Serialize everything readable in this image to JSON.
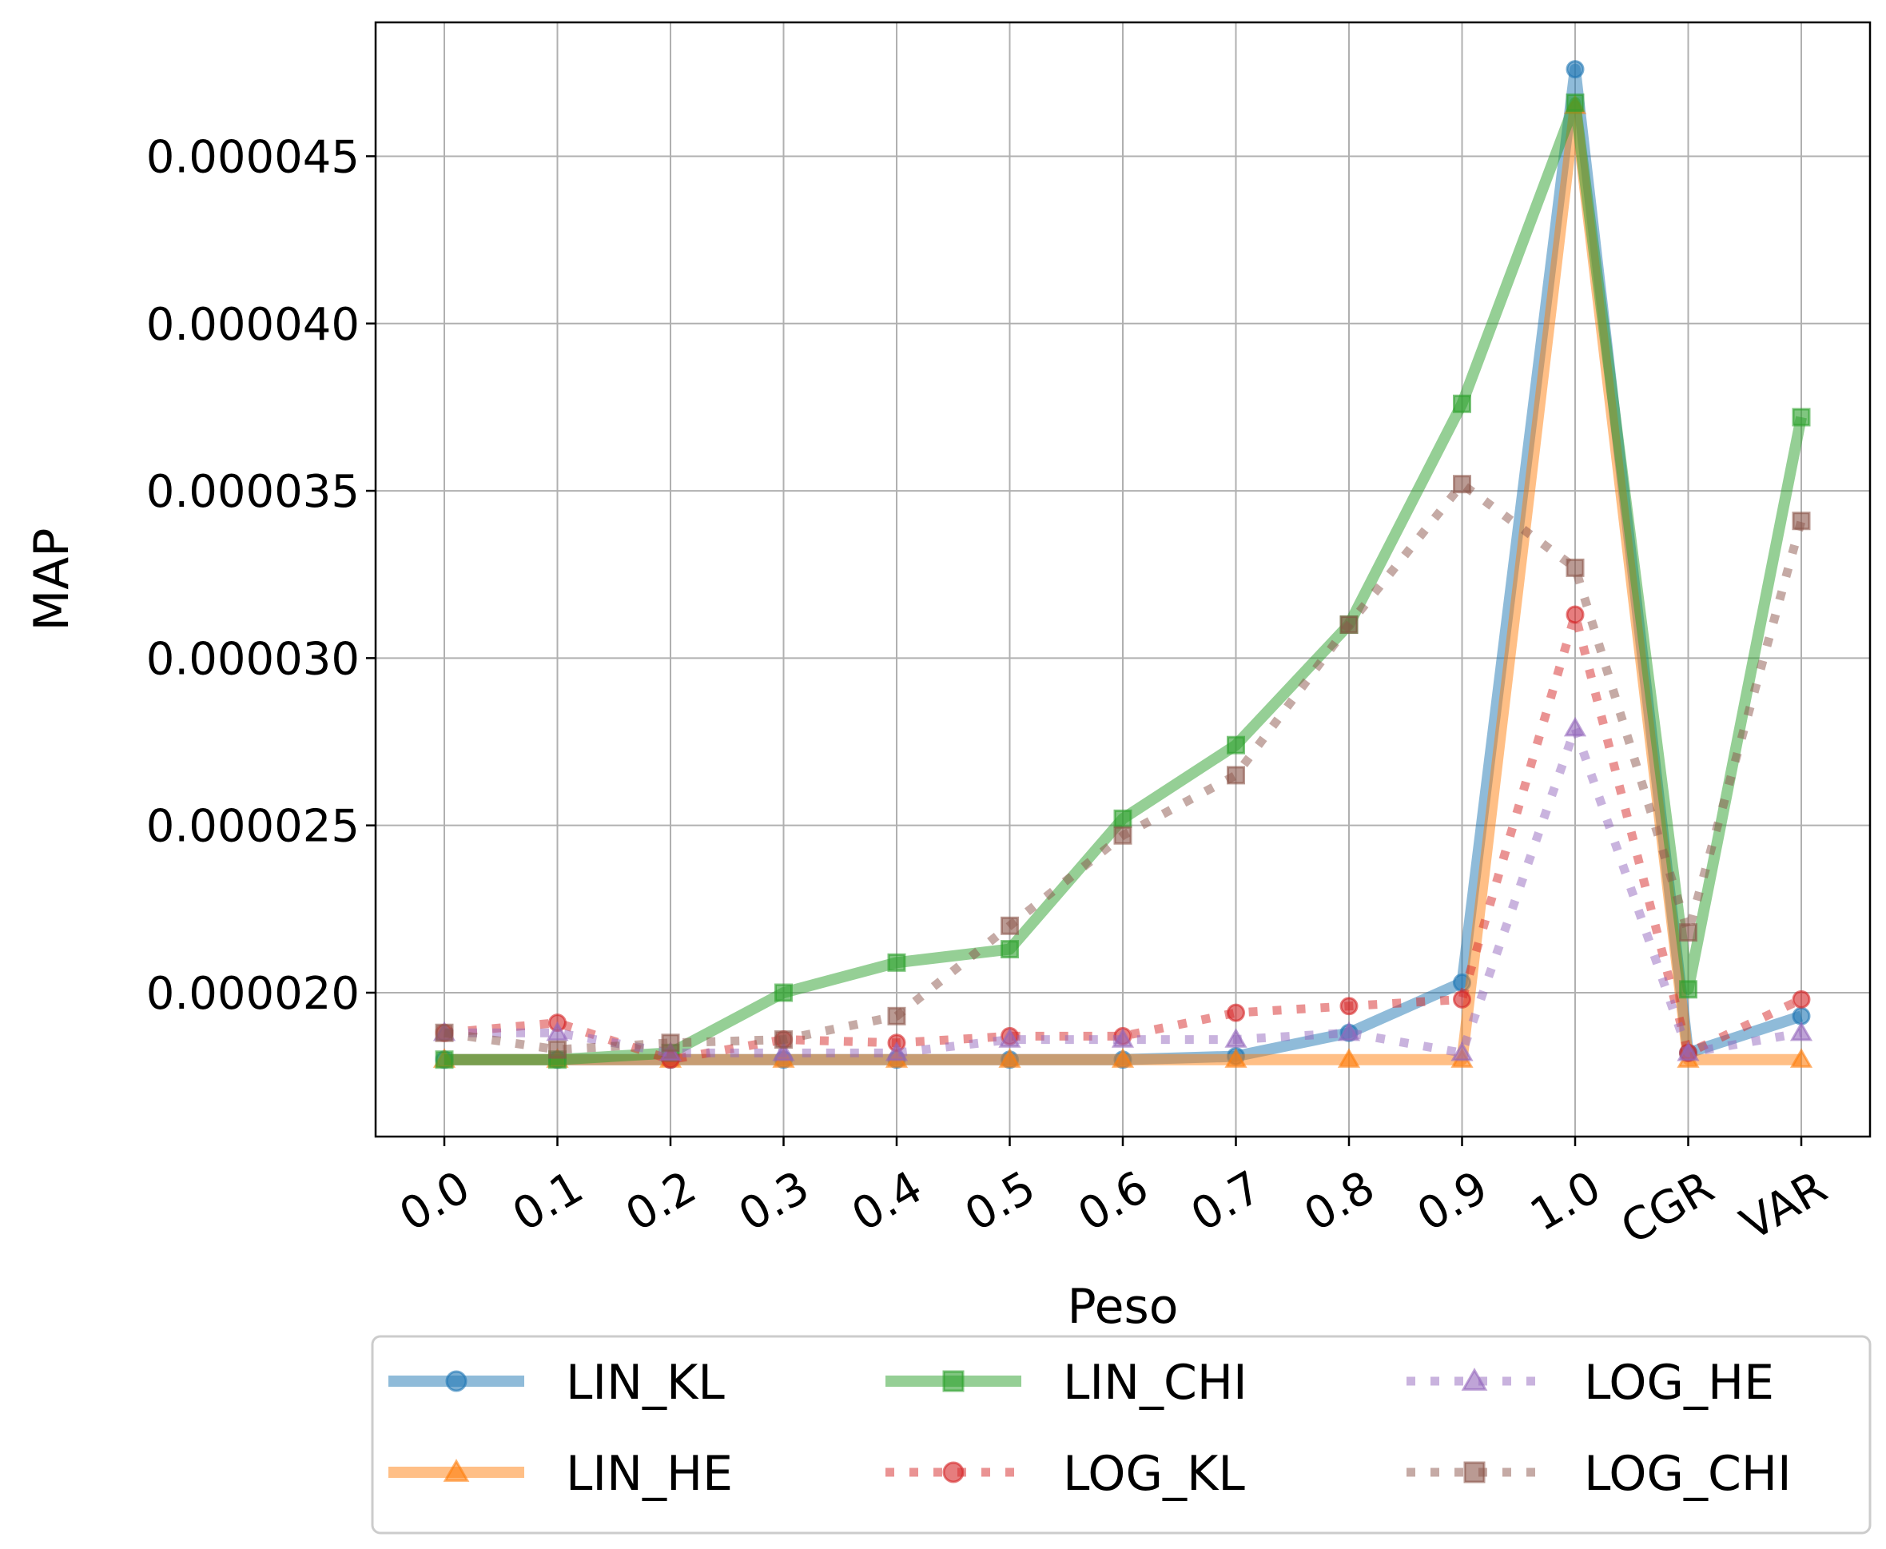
{
  "chart_data": {
    "type": "line",
    "xlabel": "Peso",
    "ylabel": "MAP",
    "categories": [
      "0.0",
      "0.1",
      "0.2",
      "0.3",
      "0.4",
      "0.5",
      "0.6",
      "0.7",
      "0.8",
      "0.9",
      "1.0",
      "CGR",
      "VAR"
    ],
    "ylim": [
      1.57e-05,
      4.9e-05
    ],
    "yticks": [
      2e-05,
      2.5e-05,
      3e-05,
      3.5e-05,
      4e-05,
      4.5e-05
    ],
    "ytick_labels": [
      "0.000020",
      "0.000025",
      "0.000030",
      "0.000035",
      "0.000040",
      "0.000045"
    ],
    "grid": true,
    "legend": {
      "placement": "below",
      "columns": 3
    },
    "series": [
      {
        "name": "LIN_KL",
        "color": "#1f77b4",
        "style": "solid",
        "marker": "circle",
        "values": [
          1.8e-05,
          1.8e-05,
          1.8e-05,
          1.8e-05,
          1.8e-05,
          1.8e-05,
          1.8e-05,
          1.81e-05,
          1.88e-05,
          2.03e-05,
          4.76e-05,
          1.82e-05,
          1.93e-05
        ]
      },
      {
        "name": "LIN_HE",
        "color": "#ff7f0e",
        "style": "solid",
        "marker": "triangle",
        "values": [
          1.8e-05,
          1.8e-05,
          1.8e-05,
          1.8e-05,
          1.8e-05,
          1.8e-05,
          1.8e-05,
          1.8e-05,
          1.8e-05,
          1.8e-05,
          4.65e-05,
          1.8e-05,
          1.8e-05
        ]
      },
      {
        "name": "LIN_CHI",
        "color": "#2ca02c",
        "style": "solid",
        "marker": "square",
        "values": [
          1.8e-05,
          1.8e-05,
          1.82e-05,
          2e-05,
          2.09e-05,
          2.13e-05,
          2.52e-05,
          2.74e-05,
          3.1e-05,
          3.76e-05,
          4.66e-05,
          2.01e-05,
          3.72e-05
        ]
      },
      {
        "name": "LOG_KL",
        "color": "#d62728",
        "style": "dotted",
        "marker": "circle",
        "values": [
          1.88e-05,
          1.91e-05,
          1.8e-05,
          1.86e-05,
          1.85e-05,
          1.87e-05,
          1.87e-05,
          1.94e-05,
          1.96e-05,
          1.98e-05,
          3.13e-05,
          1.82e-05,
          1.98e-05
        ]
      },
      {
        "name": "LOG_HE",
        "color": "#9467bd",
        "style": "dotted",
        "marker": "triangle",
        "values": [
          1.88e-05,
          1.88e-05,
          1.82e-05,
          1.82e-05,
          1.82e-05,
          1.86e-05,
          1.86e-05,
          1.86e-05,
          1.88e-05,
          1.82e-05,
          2.79e-05,
          1.82e-05,
          1.88e-05
        ]
      },
      {
        "name": "LOG_CHI",
        "color": "#8c564b",
        "style": "dotted",
        "marker": "square",
        "values": [
          1.88e-05,
          1.83e-05,
          1.85e-05,
          1.86e-05,
          1.93e-05,
          2.2e-05,
          2.47e-05,
          2.65e-05,
          3.1e-05,
          3.52e-05,
          3.27e-05,
          2.18e-05,
          3.41e-05
        ]
      }
    ]
  }
}
